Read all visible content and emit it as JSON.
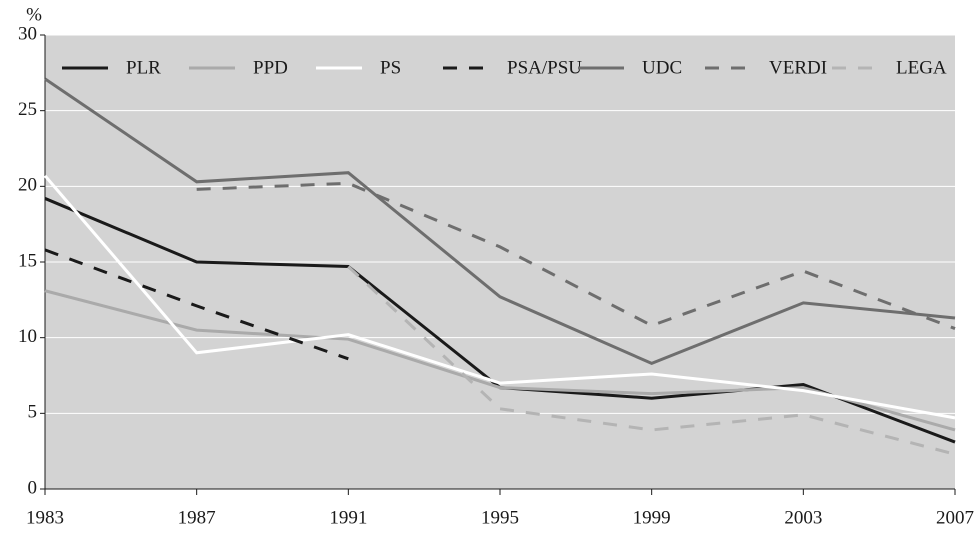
{
  "chart_data": {
    "type": "line",
    "y_label": "%",
    "x": [
      1983,
      1987,
      1991,
      1995,
      1999,
      2003,
      2007
    ],
    "xlim": [
      1983,
      2007
    ],
    "xticks": [
      1983,
      1987,
      1991,
      1995,
      1999,
      2003,
      2007
    ],
    "ylim": [
      0,
      30
    ],
    "yticks": [
      0,
      5,
      10,
      15,
      20,
      25,
      30
    ],
    "grid": true,
    "legend": "top",
    "series": [
      {
        "name": "PLR",
        "color": "#1a1a1a",
        "dashed": false,
        "values": [
          19.2,
          15.0,
          14.7,
          6.7,
          6.0,
          6.9,
          3.1
        ]
      },
      {
        "name": "PPD",
        "color": "#aaaaaa",
        "dashed": false,
        "values": [
          13.1,
          10.5,
          9.9,
          6.7,
          6.3,
          6.7,
          3.9
        ]
      },
      {
        "name": "PS",
        "color": "#ffffff",
        "dashed": false,
        "values": [
          20.7,
          9.0,
          10.2,
          7.0,
          7.6,
          6.5,
          4.7
        ]
      },
      {
        "name": "PSA/PSU",
        "color": "#1a1a1a",
        "dashed": true,
        "values": [
          15.8,
          12.1,
          8.6,
          null,
          null,
          null,
          null
        ]
      },
      {
        "name": "UDC",
        "color": "#6e6e6e",
        "dashed": false,
        "values": [
          27.1,
          20.3,
          20.9,
          12.7,
          8.3,
          12.3,
          11.3
        ]
      },
      {
        "name": "VERDI",
        "color": "#6e6e6e",
        "dashed": true,
        "values": [
          null,
          19.8,
          20.2,
          16.0,
          10.8,
          14.4,
          10.6
        ]
      },
      {
        "name": "LEGA",
        "color": "#b4b4b4",
        "dashed": true,
        "values": [
          null,
          null,
          14.7,
          5.3,
          3.9,
          4.9,
          2.3
        ]
      }
    ]
  }
}
